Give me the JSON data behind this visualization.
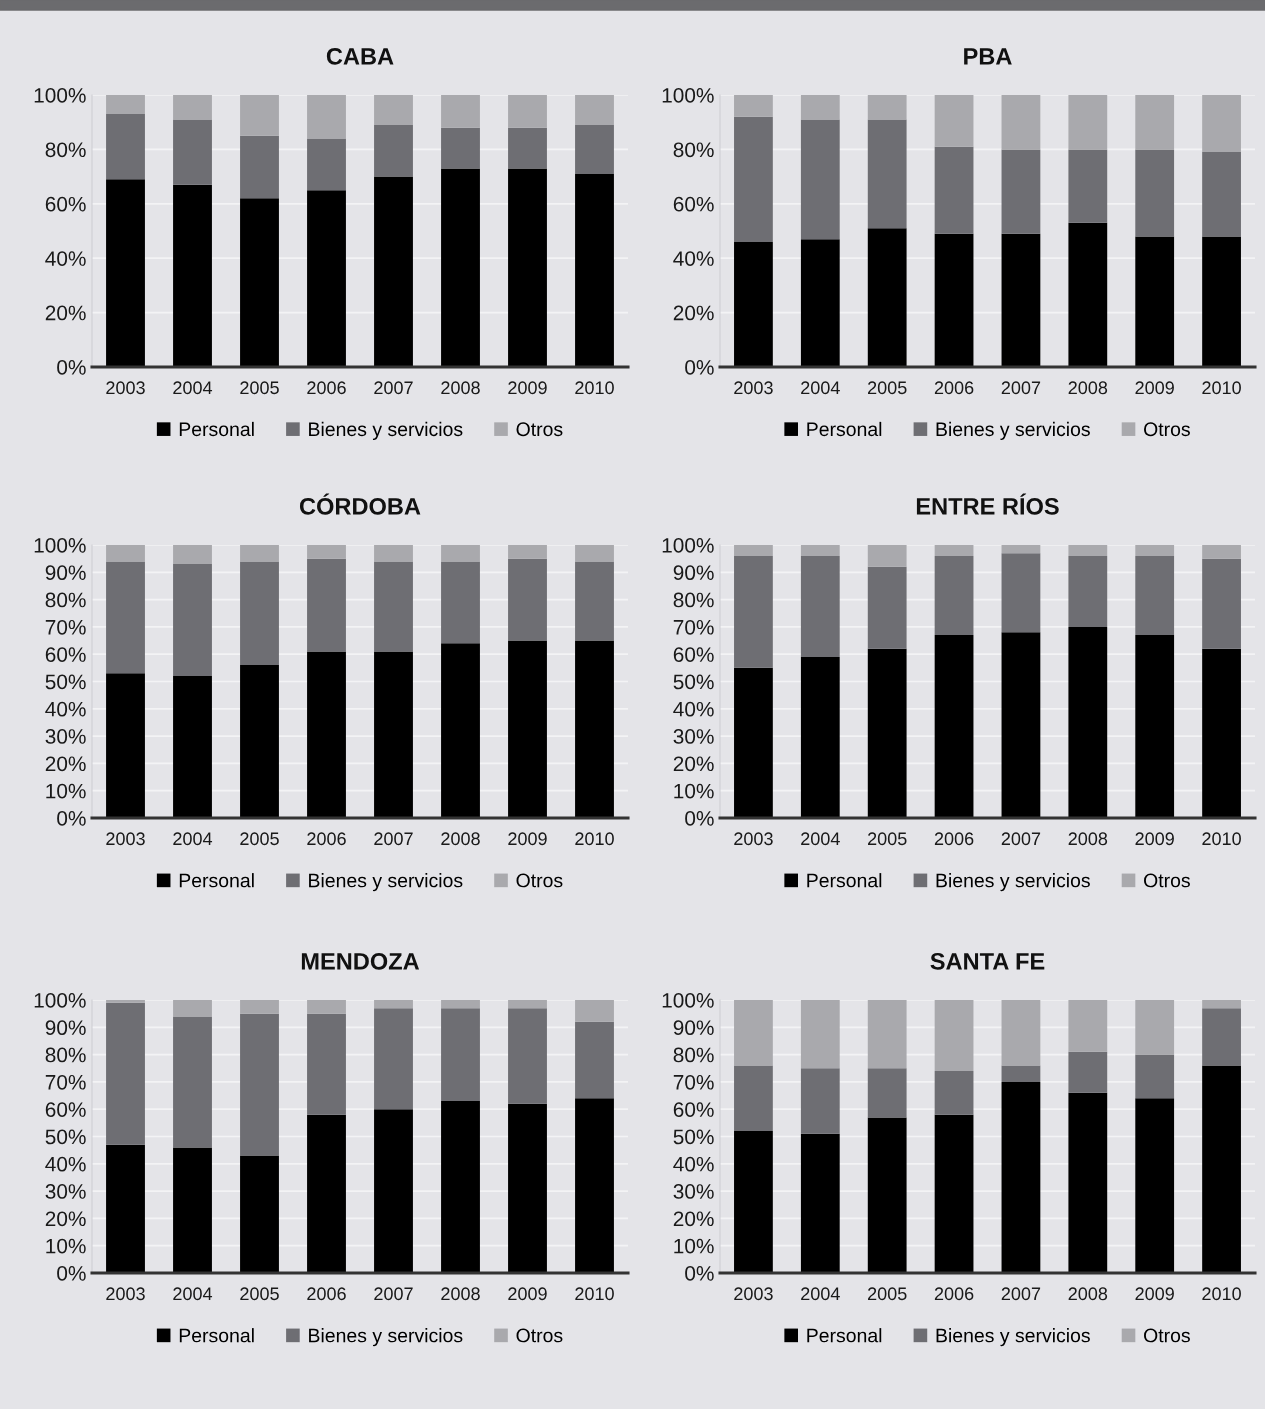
{
  "chart_data": [
    {
      "type": "bar",
      "title": "CABA",
      "categories": [
        "2003",
        "2004",
        "2005",
        "2006",
        "2007",
        "2008",
        "2009",
        "2010"
      ],
      "stacked": true,
      "series": [
        {
          "name": "Personal",
          "color": "#000000",
          "values": [
            69,
            67,
            62,
            65,
            70,
            73,
            73,
            71
          ]
        },
        {
          "name": "Bienes y servicios",
          "color": "#6e6e73",
          "values": [
            24,
            24,
            23,
            19,
            19,
            15,
            15,
            18
          ]
        },
        {
          "name": "Otros",
          "color": "#a9a9ad",
          "values": [
            7,
            9,
            15,
            16,
            11,
            12,
            12,
            11
          ]
        }
      ],
      "ylim": [
        0,
        100
      ],
      "yticks": [
        {
          "value": 0,
          "label": "0%"
        },
        {
          "value": 20,
          "label": "20%"
        },
        {
          "value": 40,
          "label": "40%"
        },
        {
          "value": 60,
          "label": "60%"
        },
        {
          "value": 80,
          "label": "80%"
        },
        {
          "value": 100,
          "label": "100%"
        }
      ],
      "grid": "y",
      "legend": "bottom"
    },
    {
      "type": "bar",
      "title": "PBA",
      "categories": [
        "2003",
        "2004",
        "2005",
        "2006",
        "2007",
        "2008",
        "2009",
        "2010"
      ],
      "stacked": true,
      "series": [
        {
          "name": "Personal",
          "color": "#000000",
          "values": [
            46,
            47,
            51,
            49,
            49,
            53,
            48,
            48
          ]
        },
        {
          "name": "Bienes y servicios",
          "color": "#6e6e73",
          "values": [
            46,
            44,
            40,
            32,
            31,
            27,
            32,
            31
          ]
        },
        {
          "name": "Otros",
          "color": "#a9a9ad",
          "values": [
            8,
            9,
            9,
            19,
            20,
            20,
            20,
            21
          ]
        }
      ],
      "ylim": [
        0,
        100
      ],
      "yticks": [
        {
          "value": 0,
          "label": "0%"
        },
        {
          "value": 20,
          "label": "20%"
        },
        {
          "value": 40,
          "label": "40%"
        },
        {
          "value": 60,
          "label": "60%"
        },
        {
          "value": 80,
          "label": "80%"
        },
        {
          "value": 100,
          "label": "100%"
        }
      ],
      "grid": "y",
      "legend": "bottom"
    },
    {
      "type": "bar",
      "title": "CÓRDOBA",
      "categories": [
        "2003",
        "2004",
        "2005",
        "2006",
        "2007",
        "2008",
        "2009",
        "2010"
      ],
      "stacked": true,
      "series": [
        {
          "name": "Personal",
          "color": "#000000",
          "values": [
            53,
            52,
            56,
            61,
            61,
            64,
            65,
            65
          ]
        },
        {
          "name": "Bienes y servicios",
          "color": "#6e6e73",
          "values": [
            41,
            41,
            38,
            34,
            33,
            30,
            30,
            29
          ]
        },
        {
          "name": "Otros",
          "color": "#a9a9ad",
          "values": [
            6,
            7,
            6,
            5,
            6,
            6,
            5,
            6
          ]
        }
      ],
      "ylim": [
        0,
        100
      ],
      "yticks": [
        {
          "value": 0,
          "label": "0%"
        },
        {
          "value": 10,
          "label": "10%"
        },
        {
          "value": 20,
          "label": "20%"
        },
        {
          "value": 30,
          "label": "30%"
        },
        {
          "value": 40,
          "label": "40%"
        },
        {
          "value": 50,
          "label": "50%"
        },
        {
          "value": 60,
          "label": "60%"
        },
        {
          "value": 70,
          "label": "70%"
        },
        {
          "value": 80,
          "label": "80%"
        },
        {
          "value": 90,
          "label": "90%"
        },
        {
          "value": 100,
          "label": "100%"
        }
      ],
      "grid": "y",
      "legend": "bottom"
    },
    {
      "type": "bar",
      "title": "ENTRE RÍOS",
      "categories": [
        "2003",
        "2004",
        "2005",
        "2006",
        "2007",
        "2008",
        "2009",
        "2010"
      ],
      "stacked": true,
      "series": [
        {
          "name": "Personal",
          "color": "#000000",
          "values": [
            55,
            59,
            62,
            67,
            68,
            70,
            67,
            62
          ]
        },
        {
          "name": "Bienes y servicios",
          "color": "#6e6e73",
          "values": [
            41,
            37,
            30,
            29,
            29,
            26,
            29,
            33
          ]
        },
        {
          "name": "Otros",
          "color": "#a9a9ad",
          "values": [
            4,
            4,
            8,
            4,
            3,
            4,
            4,
            5
          ]
        }
      ],
      "ylim": [
        0,
        100
      ],
      "yticks": [
        {
          "value": 0,
          "label": "0%"
        },
        {
          "value": 10,
          "label": "10%"
        },
        {
          "value": 20,
          "label": "20%"
        },
        {
          "value": 30,
          "label": "30%"
        },
        {
          "value": 40,
          "label": "40%"
        },
        {
          "value": 50,
          "label": "50%"
        },
        {
          "value": 60,
          "label": "60%"
        },
        {
          "value": 70,
          "label": "70%"
        },
        {
          "value": 80,
          "label": "80%"
        },
        {
          "value": 90,
          "label": "90%"
        },
        {
          "value": 100,
          "label": "100%"
        }
      ],
      "grid": "y",
      "legend": "bottom"
    },
    {
      "type": "bar",
      "title": "MENDOZA",
      "categories": [
        "2003",
        "2004",
        "2005",
        "2006",
        "2007",
        "2008",
        "2009",
        "2010"
      ],
      "stacked": true,
      "series": [
        {
          "name": "Personal",
          "color": "#000000",
          "values": [
            47,
            46,
            43,
            58,
            60,
            63,
            62,
            64
          ]
        },
        {
          "name": "Bienes y servicios",
          "color": "#6e6e73",
          "values": [
            52,
            48,
            52,
            37,
            37,
            34,
            35,
            28
          ]
        },
        {
          "name": "Otros",
          "color": "#a9a9ad",
          "values": [
            1,
            6,
            5,
            5,
            3,
            3,
            3,
            8
          ]
        }
      ],
      "ylim": [
        0,
        100
      ],
      "yticks": [
        {
          "value": 0,
          "label": "0%"
        },
        {
          "value": 10,
          "label": "10%"
        },
        {
          "value": 20,
          "label": "20%"
        },
        {
          "value": 30,
          "label": "30%"
        },
        {
          "value": 40,
          "label": "40%"
        },
        {
          "value": 50,
          "label": "50%"
        },
        {
          "value": 60,
          "label": "60%"
        },
        {
          "value": 70,
          "label": "70%"
        },
        {
          "value": 80,
          "label": "80%"
        },
        {
          "value": 90,
          "label": "90%"
        },
        {
          "value": 100,
          "label": "100%"
        }
      ],
      "grid": "y",
      "legend": "bottom"
    },
    {
      "type": "bar",
      "title": "SANTA FE",
      "categories": [
        "2003",
        "2004",
        "2005",
        "2006",
        "2007",
        "2008",
        "2009",
        "2010"
      ],
      "stacked": true,
      "series": [
        {
          "name": "Personal",
          "color": "#000000",
          "values": [
            52,
            51,
            57,
            58,
            70,
            66,
            64,
            76
          ]
        },
        {
          "name": "Bienes y servicios",
          "color": "#6e6e73",
          "values": [
            24,
            24,
            18,
            16,
            6,
            15,
            16,
            21
          ]
        },
        {
          "name": "Otros",
          "color": "#a9a9ad",
          "values": [
            24,
            25,
            25,
            26,
            24,
            19,
            20,
            3
          ]
        }
      ],
      "ylim": [
        0,
        100
      ],
      "yticks": [
        {
          "value": 0,
          "label": "0%"
        },
        {
          "value": 10,
          "label": "10%"
        },
        {
          "value": 20,
          "label": "20%"
        },
        {
          "value": 30,
          "label": "30%"
        },
        {
          "value": 40,
          "label": "40%"
        },
        {
          "value": 50,
          "label": "50%"
        },
        {
          "value": 60,
          "label": "60%"
        },
        {
          "value": 70,
          "label": "70%"
        },
        {
          "value": 80,
          "label": "80%"
        },
        {
          "value": 90,
          "label": "90%"
        },
        {
          "value": 100,
          "label": "100%"
        }
      ],
      "grid": "y",
      "legend": "bottom"
    }
  ]
}
